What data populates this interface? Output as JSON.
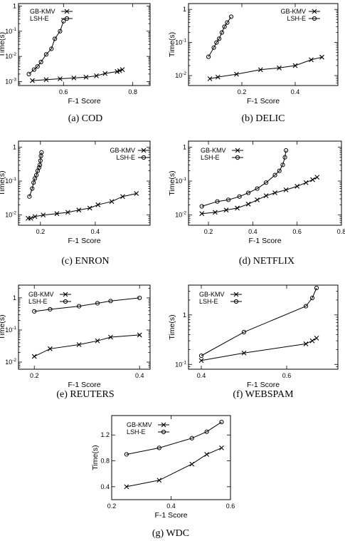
{
  "figure": {
    "captions": [
      "(a)  COD",
      "(b)  DELIC",
      "(c)  ENRON",
      "(d)  NETFLIX",
      "(e)  REUTERS",
      "(f)  WEBSPAM",
      "(g)  WDC"
    ]
  },
  "chart_data": [
    {
      "id": "a",
      "type": "line",
      "caption": "(a)  COD",
      "xlabel": "F-1 Score",
      "ylabel": "Time(s)",
      "yscale": "log",
      "xlim": [
        0.47,
        0.85
      ],
      "ylim": [
        0.0007,
        1.25
      ],
      "xticks": [
        0.6,
        0.8
      ],
      "xticklabels": [
        "0.6",
        "0.8"
      ],
      "yticks": [
        0.001,
        0.01,
        0.1,
        1
      ],
      "yticklabels": [
        "10⁻³",
        "10⁻²",
        "10⁻¹",
        "1"
      ],
      "legend": "top-left",
      "series": [
        {
          "name": "GB-KMV",
          "marker": "x",
          "x": [
            0.51,
            0.55,
            0.59,
            0.63,
            0.665,
            0.695,
            0.72,
            0.755,
            0.762,
            0.77
          ],
          "y": [
            0.0011,
            0.0012,
            0.0013,
            0.0014,
            0.0015,
            0.0017,
            0.0021,
            0.0025,
            0.0027,
            0.003
          ]
        },
        {
          "name": "LSH-E",
          "marker": "o",
          "x": [
            0.5,
            0.515,
            0.525,
            0.535,
            0.55,
            0.565,
            0.575,
            0.59,
            0.6
          ],
          "y": [
            0.002,
            0.003,
            0.004,
            0.006,
            0.012,
            0.02,
            0.05,
            0.1,
            0.25
          ]
        }
      ]
    },
    {
      "id": "b",
      "type": "line",
      "caption": "(b)  DELIC",
      "xlabel": "F-1 Score",
      "ylabel": "Time(s)",
      "yscale": "log",
      "xlim": [
        0.0,
        0.56
      ],
      "ylim": [
        0.005,
        1.5
      ],
      "xticks": [
        0.2,
        0.4
      ],
      "xticklabels": [
        "0.2",
        "0.4"
      ],
      "yticks": [
        0.01,
        0.1,
        1
      ],
      "yticklabels": [
        "10⁻²",
        "10⁻¹",
        "1"
      ],
      "legend": "top-right",
      "series": [
        {
          "name": "GB-KMV",
          "marker": "x",
          "x": [
            0.08,
            0.11,
            0.18,
            0.27,
            0.34,
            0.4,
            0.46,
            0.5
          ],
          "y": [
            0.008,
            0.009,
            0.011,
            0.015,
            0.017,
            0.02,
            0.03,
            0.036
          ]
        },
        {
          "name": "LSH-E",
          "marker": "o",
          "x": [
            0.075,
            0.095,
            0.105,
            0.115,
            0.125,
            0.135,
            0.145,
            0.16
          ],
          "y": [
            0.037,
            0.07,
            0.1,
            0.13,
            0.2,
            0.3,
            0.4,
            0.6
          ]
        }
      ]
    },
    {
      "id": "c",
      "type": "line",
      "caption": "(c)  ENRON",
      "xlabel": "F-1 Score",
      "ylabel": "Time(s)",
      "yscale": "log",
      "xlim": [
        0.12,
        0.6
      ],
      "ylim": [
        0.005,
        1.5
      ],
      "xticks": [
        0.2,
        0.4
      ],
      "xticklabels": [
        "0.2",
        "0.4"
      ],
      "yticks": [
        0.01,
        0.1,
        1
      ],
      "yticklabels": [
        "10⁻²",
        "10⁻¹",
        "1"
      ],
      "legend": "top-right",
      "series": [
        {
          "name": "GB-KMV",
          "marker": "x",
          "x": [
            0.155,
            0.165,
            0.18,
            0.21,
            0.26,
            0.3,
            0.34,
            0.38,
            0.41,
            0.46,
            0.5,
            0.55
          ],
          "y": [
            0.008,
            0.008,
            0.009,
            0.01,
            0.011,
            0.012,
            0.014,
            0.016,
            0.02,
            0.025,
            0.035,
            0.043
          ]
        },
        {
          "name": "LSH-E",
          "marker": "o",
          "x": [
            0.16,
            0.17,
            0.175,
            0.18,
            0.185,
            0.19,
            0.195,
            0.198,
            0.2,
            0.202,
            0.204
          ],
          "y": [
            0.035,
            0.06,
            0.09,
            0.12,
            0.15,
            0.2,
            0.25,
            0.3,
            0.4,
            0.55,
            0.7
          ]
        }
      ]
    },
    {
      "id": "d",
      "type": "line",
      "caption": "(d)  NETFLIX",
      "xlabel": "F-1 Score",
      "ylabel": "Time(s)",
      "yscale": "log",
      "xlim": [
        0.11,
        0.8
      ],
      "ylim": [
        0.005,
        1.5
      ],
      "xticks": [
        0.2,
        0.4,
        0.6,
        0.8
      ],
      "xticklabels": [
        "0.2",
        "0.4",
        "0.6",
        "0.8"
      ],
      "yticks": [
        0.01,
        0.1,
        1
      ],
      "yticklabels": [
        "10⁻²",
        "10⁻¹",
        "1"
      ],
      "legend": "top-left",
      "series": [
        {
          "name": "GB-KMV",
          "marker": "x",
          "x": [
            0.17,
            0.23,
            0.28,
            0.33,
            0.38,
            0.42,
            0.46,
            0.5,
            0.55,
            0.6,
            0.64,
            0.67,
            0.69
          ],
          "y": [
            0.011,
            0.012,
            0.014,
            0.016,
            0.021,
            0.028,
            0.037,
            0.045,
            0.055,
            0.07,
            0.09,
            0.11,
            0.13
          ]
        },
        {
          "name": "LSH-E",
          "marker": "o",
          "x": [
            0.17,
            0.24,
            0.29,
            0.34,
            0.38,
            0.42,
            0.46,
            0.5,
            0.52,
            0.535,
            0.545,
            0.55
          ],
          "y": [
            0.018,
            0.025,
            0.028,
            0.035,
            0.045,
            0.06,
            0.09,
            0.15,
            0.2,
            0.3,
            0.5,
            0.8
          ]
        }
      ]
    },
    {
      "id": "e",
      "type": "line",
      "caption": "(e)  REUTERS",
      "xlabel": "F-1 Score",
      "ylabel": "Time(s)",
      "yscale": "log",
      "xlim": [
        0.17,
        0.42
      ],
      "ylim": [
        0.006,
        2.5
      ],
      "xticks": [
        0.2,
        0.4
      ],
      "xticklabels": [
        "0.2",
        "0.4"
      ],
      "yticks": [
        0.01,
        0.1,
        1
      ],
      "yticklabels": [
        "10⁻²",
        "10⁻¹",
        "1"
      ],
      "legend": "top-left",
      "series": [
        {
          "name": "GB-KMV",
          "marker": "x",
          "x": [
            0.2,
            0.23,
            0.285,
            0.32,
            0.345,
            0.4
          ],
          "y": [
            0.015,
            0.026,
            0.035,
            0.046,
            0.06,
            0.07
          ]
        },
        {
          "name": "LSH-E",
          "marker": "o",
          "x": [
            0.2,
            0.23,
            0.285,
            0.32,
            0.345,
            0.4
          ],
          "y": [
            0.38,
            0.44,
            0.55,
            0.68,
            0.8,
            1.0
          ]
        }
      ]
    },
    {
      "id": "f",
      "type": "line",
      "caption": "(f)  WEBSPAM",
      "xlabel": "F-1 Score",
      "ylabel": "Time(s)",
      "yscale": "log",
      "xlim": [
        0.37,
        0.72
      ],
      "ylim": [
        0.08,
        4.0
      ],
      "xticks": [
        0.4,
        0.6
      ],
      "xticklabels": [
        "0.4",
        "0.6"
      ],
      "yticks": [
        0.1,
        1
      ],
      "yticklabels": [
        "10⁻¹",
        "1"
      ],
      "legend": "top-left",
      "series": [
        {
          "name": "GB-KMV",
          "marker": "x",
          "x": [
            0.4,
            0.5,
            0.645,
            0.66,
            0.67
          ],
          "y": [
            0.12,
            0.17,
            0.26,
            0.3,
            0.34
          ]
        },
        {
          "name": "LSH-E",
          "marker": "o",
          "x": [
            0.4,
            0.5,
            0.645,
            0.66,
            0.67
          ],
          "y": [
            0.15,
            0.45,
            1.5,
            2.2,
            3.5
          ]
        }
      ]
    },
    {
      "id": "g",
      "type": "line",
      "caption": "(g)  WDC",
      "xlabel": "F-1 Score",
      "ylabel": "Time(s)",
      "yscale": "linear",
      "xlim": [
        0.2,
        0.6
      ],
      "ylim": [
        0.2,
        1.5
      ],
      "xticks": [
        0.2,
        0.4,
        0.6
      ],
      "xticklabels": [
        "0.2",
        "0.4",
        "0.6"
      ],
      "yticks": [
        0.4,
        0.8,
        1.2
      ],
      "yticklabels": [
        "0.4",
        "0.8",
        "1.2"
      ],
      "legend": "top-left",
      "series": [
        {
          "name": "GB-KMV",
          "marker": "x",
          "x": [
            0.25,
            0.36,
            0.47,
            0.52,
            0.57
          ],
          "y": [
            0.4,
            0.5,
            0.75,
            0.9,
            1.0
          ]
        },
        {
          "name": "LSH-E",
          "marker": "o",
          "x": [
            0.25,
            0.36,
            0.47,
            0.52,
            0.57
          ],
          "y": [
            0.9,
            1.0,
            1.15,
            1.25,
            1.4
          ]
        }
      ]
    }
  ]
}
